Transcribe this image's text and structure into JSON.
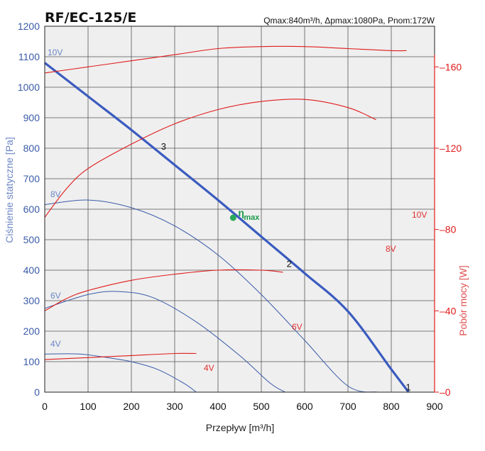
{
  "chart_data": {
    "type": "line",
    "title": "RF/EC-125/E",
    "specs": "Qmax:840m³/h, Δpmax:1080Pa, Pnom:172W",
    "xlabel": "Przepływ [m³/h]",
    "ylabel_left": "Ciśnienie statyczne [Pa]",
    "ylabel_right": "Pobór mocy [W]",
    "xlim": [
      0,
      900
    ],
    "ylim_left": [
      0,
      1200
    ],
    "ylim_right": [
      0,
      180
    ],
    "x_ticks": [
      "0",
      "100",
      "200",
      "300",
      "400",
      "500",
      "600",
      "700",
      "800",
      "900"
    ],
    "y_ticks_left": [
      "0",
      "100",
      "200",
      "300",
      "400",
      "500",
      "600",
      "700",
      "800",
      "900",
      "1000",
      "1100",
      "1200"
    ],
    "y_ticks_right": [
      "0",
      "40",
      "80",
      "120",
      "160"
    ],
    "y_ticks_right_values": [
      0,
      40,
      80,
      120,
      160
    ],
    "grid": true,
    "pressure_curves": [
      {
        "name": "10V",
        "x": [
          0,
          100,
          200,
          300,
          400,
          500,
          600,
          700,
          800,
          840
        ],
        "y": [
          1080,
          970,
          860,
          745,
          630,
          510,
          390,
          265,
          75,
          0
        ]
      },
      {
        "name": "8V",
        "x": [
          0,
          100,
          200,
          300,
          400,
          500,
          600,
          700,
          770
        ],
        "y": [
          615,
          630,
          605,
          545,
          450,
          320,
          170,
          20,
          0
        ]
      },
      {
        "name": "6V",
        "x": [
          0,
          100,
          170,
          250,
          350,
          450,
          520,
          555
        ],
        "y": [
          275,
          320,
          330,
          310,
          230,
          120,
          30,
          0
        ]
      },
      {
        "name": "4V",
        "x": [
          0,
          80,
          150,
          200,
          260,
          320,
          350
        ],
        "y": [
          125,
          125,
          112,
          100,
          75,
          30,
          0
        ]
      }
    ],
    "power_curves": [
      {
        "name": "10V",
        "x": [
          0,
          100,
          200,
          300,
          400,
          500,
          600,
          700,
          800,
          835
        ],
        "y": [
          157,
          160,
          163,
          166,
          169,
          170,
          170,
          169,
          168,
          168
        ]
      },
      {
        "name": "8V",
        "x": [
          0,
          50,
          100,
          200,
          300,
          400,
          500,
          600,
          700,
          765
        ],
        "y": [
          86,
          100,
          110,
          122,
          132,
          139,
          143,
          144,
          140,
          134
        ]
      },
      {
        "name": "6V",
        "x": [
          0,
          50,
          100,
          200,
          300,
          400,
          500,
          550
        ],
        "y": [
          40,
          46,
          50,
          55,
          58,
          60,
          60,
          59
        ]
      },
      {
        "name": "4V",
        "x": [
          0,
          100,
          200,
          300,
          350
        ],
        "y": [
          16,
          17,
          18,
          19,
          19
        ]
      }
    ],
    "system_curves": [
      {
        "name": "1",
        "x": [
          840
        ],
        "y": [
          15
        ]
      },
      {
        "name": "2",
        "x": [
          565
        ],
        "y": [
          420
        ]
      },
      {
        "name": "3",
        "x": [
          275
        ],
        "y": [
          805
        ]
      }
    ],
    "eta_point": {
      "label": "η",
      "subscript": "max",
      "x": 435,
      "y": 572
    },
    "series_labels": {
      "pressure": [
        "10V",
        "8V",
        "6V",
        "4V"
      ],
      "power": [
        "10V",
        "8V",
        "6V",
        "4V"
      ]
    },
    "colors": {
      "pressure_line": "#3a5ba8",
      "system_line": "#3a5bbf",
      "power_line": "#e01b1b",
      "grid": "#555555",
      "plot_bg": "#efefef",
      "eta": "#2aa85a"
    }
  }
}
